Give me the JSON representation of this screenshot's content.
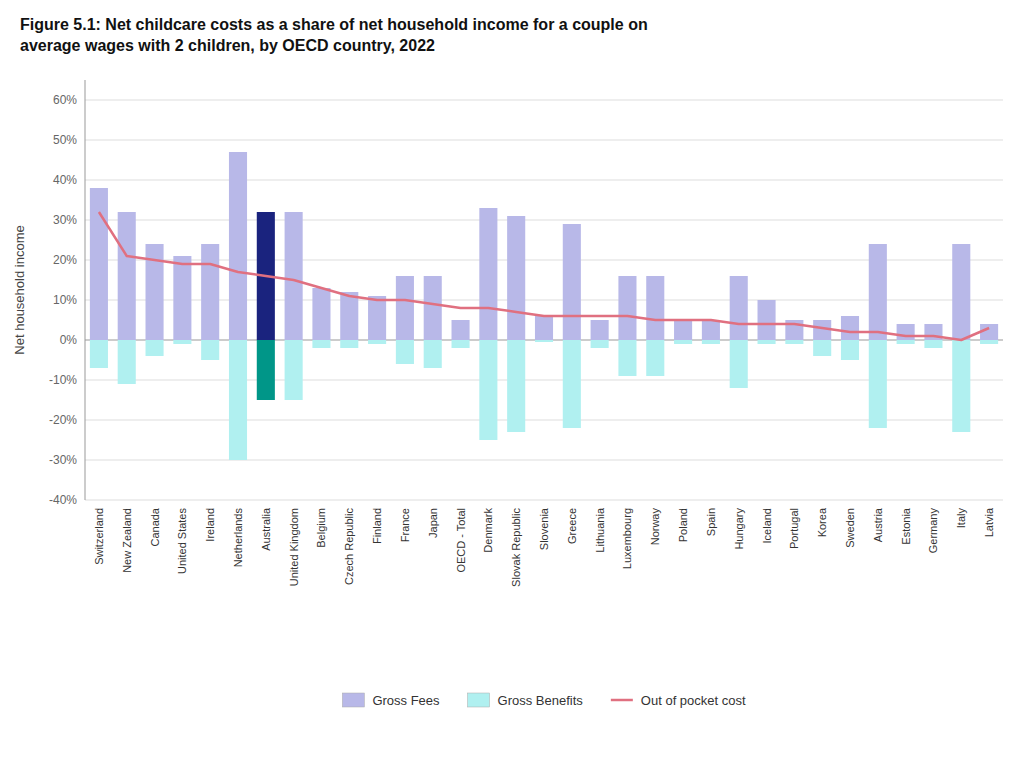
{
  "chart_data": {
    "type": "bar",
    "title": "Figure 5.1: Net childcare costs as a share of net household income for a couple on\naverage wages with 2 children, by OECD country, 2022",
    "ylabel": "Net household income",
    "categories": [
      "Switzerland",
      "New Zealand",
      "Canada",
      "United States",
      "Ireland",
      "Netherlands",
      "Australia",
      "United Kingdom",
      "Belgium",
      "Czech Republic",
      "Finland",
      "France",
      "Japan",
      "OECD - Total",
      "Denmark",
      "Slovak Republic",
      "Slovenia",
      "Greece",
      "Lithuania",
      "Luxembourg",
      "Norway",
      "Poland",
      "Spain",
      "Hungary",
      "Iceland",
      "Portugal",
      "Korea",
      "Sweden",
      "Austria",
      "Estonia",
      "Germany",
      "Italy",
      "Latvia"
    ],
    "series": [
      {
        "name": "Gross Fees",
        "type": "bar",
        "color": "#b8b8e8",
        "colors": [
          "#b8b8e8",
          "#b8b8e8",
          "#b8b8e8",
          "#b8b8e8",
          "#b8b8e8",
          "#b8b8e8",
          "#1a237e",
          "#b8b8e8",
          "#b8b8e8",
          "#b8b8e8",
          "#b8b8e8",
          "#b8b8e8",
          "#b8b8e8",
          "#b8b8e8",
          "#b8b8e8",
          "#b8b8e8",
          "#b8b8e8",
          "#b8b8e8",
          "#b8b8e8",
          "#b8b8e8",
          "#b8b8e8",
          "#b8b8e8",
          "#b8b8e8",
          "#b8b8e8",
          "#b8b8e8",
          "#b8b8e8",
          "#b8b8e8",
          "#b8b8e8",
          "#b8b8e8",
          "#b8b8e8",
          "#b8b8e8",
          "#b8b8e8",
          "#b8b8e8"
        ],
        "values": [
          38,
          32,
          24,
          21,
          24,
          47,
          32,
          32,
          13,
          12,
          11,
          16,
          16,
          5,
          33,
          31,
          6,
          29,
          5,
          16,
          16,
          5,
          5,
          16,
          10,
          5,
          5,
          6,
          24,
          4,
          4,
          24,
          4
        ]
      },
      {
        "name": "Gross Benefits",
        "type": "bar",
        "color": "#b0f0f0",
        "colors": [
          "#b0f0f0",
          "#b0f0f0",
          "#b0f0f0",
          "#b0f0f0",
          "#b0f0f0",
          "#b0f0f0",
          "#009688",
          "#b0f0f0",
          "#b0f0f0",
          "#b0f0f0",
          "#b0f0f0",
          "#b0f0f0",
          "#b0f0f0",
          "#b0f0f0",
          "#b0f0f0",
          "#b0f0f0",
          "#b0f0f0",
          "#b0f0f0",
          "#b0f0f0",
          "#b0f0f0",
          "#b0f0f0",
          "#b0f0f0",
          "#b0f0f0",
          "#b0f0f0",
          "#b0f0f0",
          "#b0f0f0",
          "#b0f0f0",
          "#b0f0f0",
          "#b0f0f0",
          "#b0f0f0",
          "#b0f0f0",
          "#b0f0f0",
          "#b0f0f0"
        ],
        "values": [
          -7,
          -11,
          -4,
          -1,
          -5,
          -30,
          -15,
          -15,
          -2,
          -2,
          -1,
          -6,
          -7,
          -2,
          -25,
          -23,
          -0.5,
          -22,
          -2,
          -9,
          -9,
          -1,
          -1,
          -12,
          -1,
          -1,
          -4,
          -5,
          -22,
          -1,
          -2,
          -23,
          -1
        ]
      },
      {
        "name": "Out of pocket cost",
        "type": "line",
        "color": "#e07080",
        "values": [
          32,
          21,
          20,
          19,
          19,
          17,
          16,
          15,
          13,
          11,
          10,
          10,
          9,
          8,
          8,
          7,
          6,
          6,
          6,
          6,
          5,
          5,
          5,
          4,
          4,
          4,
          3,
          2,
          2,
          1,
          1,
          0,
          3
        ]
      }
    ],
    "ylim": [
      -40,
      65
    ],
    "yticks": [
      {
        "value": -40,
        "label": "-40%"
      },
      {
        "value": -30,
        "label": "-30%"
      },
      {
        "value": -20,
        "label": "-20%"
      },
      {
        "value": -10,
        "label": "-10%"
      },
      {
        "value": 0,
        "label": "0%"
      },
      {
        "value": 10,
        "label": "10%"
      },
      {
        "value": 20,
        "label": "20%"
      },
      {
        "value": 30,
        "label": "30%"
      },
      {
        "value": 40,
        "label": "40%"
      },
      {
        "value": 50,
        "label": "50%"
      },
      {
        "value": 60,
        "label": "60%"
      }
    ],
    "grid": true,
    "legend": "bottom"
  }
}
